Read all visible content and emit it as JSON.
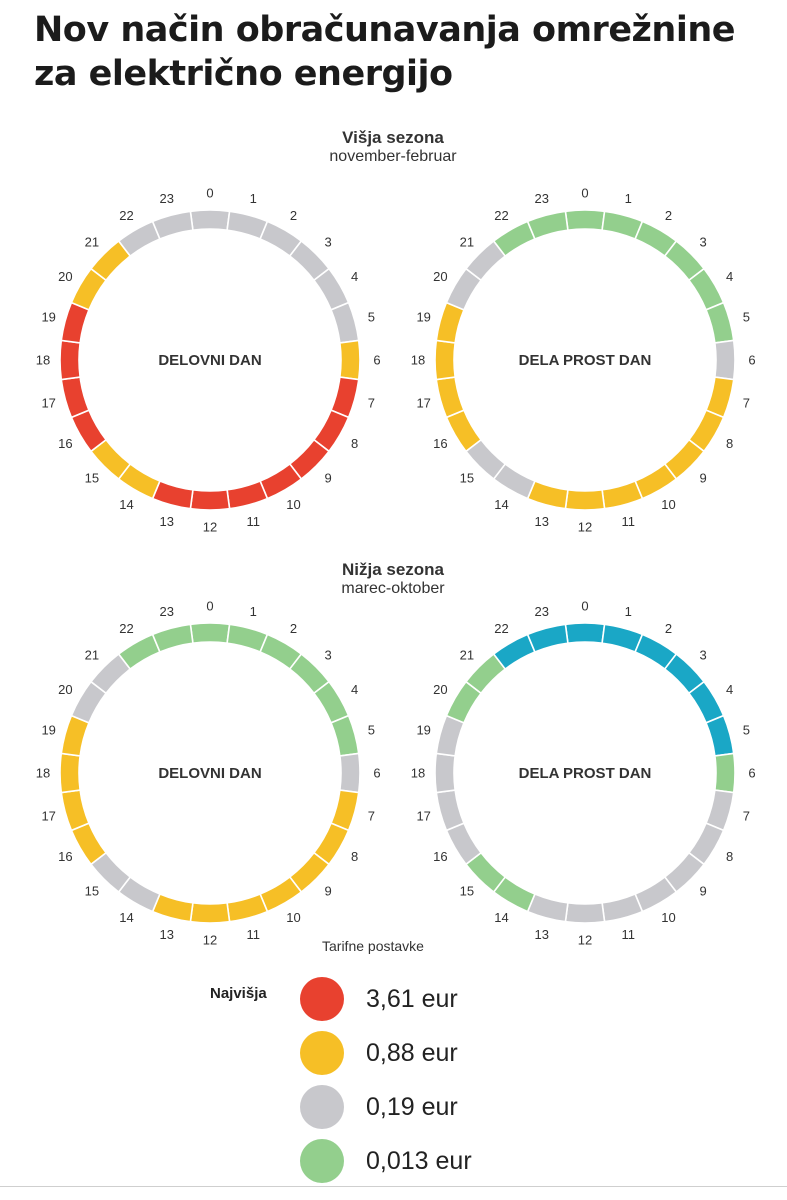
{
  "title_lines": [
    "Nov način obračunavanja omrežnine",
    "za električno energijo"
  ],
  "tariffs": [
    {
      "label": "3,61 eur",
      "color": "#e8412f"
    },
    {
      "label": "0,88 eur",
      "color": "#f6bf26"
    },
    {
      "label": "0,19 eur",
      "color": "#c8c8cc"
    },
    {
      "label": "0,013 eur",
      "color": "#93cf8d"
    }
  ],
  "extra_color": "#1aa7c6",
  "legend": {
    "title": "Tarifne postavke",
    "highest_label": "Najvišja"
  },
  "seasons": [
    {
      "name": "Višja sezona",
      "range": "november-februar"
    },
    {
      "name": "Nižja sezona",
      "range": "marec-oktober"
    }
  ],
  "chart_data": [
    {
      "type": "radial",
      "season": "Višja sezona",
      "label": "DELOVNI DAN",
      "hours": [
        0,
        1,
        2,
        3,
        4,
        5,
        6,
        7,
        8,
        9,
        10,
        11,
        12,
        13,
        14,
        15,
        16,
        17,
        18,
        19,
        20,
        21,
        22,
        23
      ],
      "tariff_by_hour": [
        2,
        2,
        2,
        2,
        2,
        2,
        1,
        0,
        0,
        0,
        0,
        0,
        0,
        0,
        1,
        1,
        0,
        0,
        0,
        0,
        1,
        1,
        2,
        2
      ]
    },
    {
      "type": "radial",
      "season": "Višja sezona",
      "label": "DELA PROST DAN",
      "hours": [
        0,
        1,
        2,
        3,
        4,
        5,
        6,
        7,
        8,
        9,
        10,
        11,
        12,
        13,
        14,
        15,
        16,
        17,
        18,
        19,
        20,
        21,
        22,
        23
      ],
      "tariff_by_hour": [
        3,
        3,
        3,
        3,
        3,
        3,
        2,
        1,
        1,
        1,
        1,
        1,
        1,
        1,
        2,
        2,
        1,
        1,
        1,
        1,
        2,
        2,
        3,
        3
      ]
    },
    {
      "type": "radial",
      "season": "Nižja sezona",
      "label": "DELOVNI DAN",
      "hours": [
        0,
        1,
        2,
        3,
        4,
        5,
        6,
        7,
        8,
        9,
        10,
        11,
        12,
        13,
        14,
        15,
        16,
        17,
        18,
        19,
        20,
        21,
        22,
        23
      ],
      "tariff_by_hour": [
        3,
        3,
        3,
        3,
        3,
        3,
        2,
        1,
        1,
        1,
        1,
        1,
        1,
        1,
        2,
        2,
        1,
        1,
        1,
        1,
        2,
        2,
        3,
        3
      ]
    },
    {
      "type": "radial",
      "season": "Nižja sezona",
      "label": "DELA PROST DAN",
      "hours": [
        0,
        1,
        2,
        3,
        4,
        5,
        6,
        7,
        8,
        9,
        10,
        11,
        12,
        13,
        14,
        15,
        16,
        17,
        18,
        19,
        20,
        21,
        22,
        23
      ],
      "tariff_by_hour": [
        4,
        4,
        4,
        4,
        4,
        4,
        3,
        2,
        2,
        2,
        2,
        2,
        2,
        2,
        3,
        3,
        2,
        2,
        2,
        2,
        3,
        3,
        4,
        4
      ]
    }
  ]
}
